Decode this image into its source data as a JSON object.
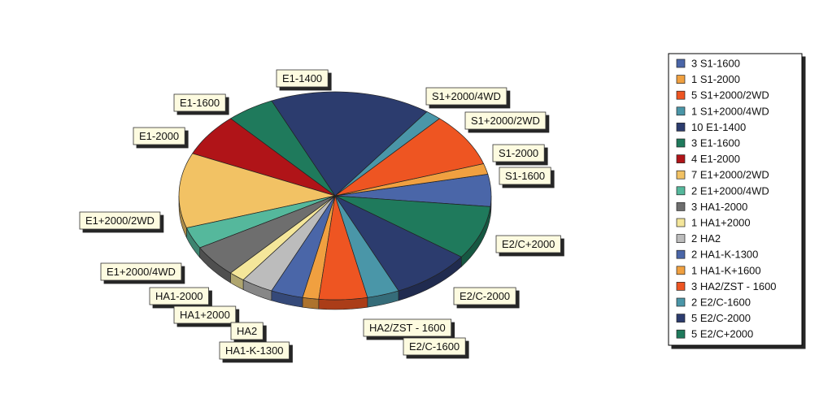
{
  "chart_data": {
    "type": "pie",
    "slices": [
      {
        "count": 3,
        "name": "S1-1600",
        "label": "S1-1600",
        "color": "#4a66a8"
      },
      {
        "count": 1,
        "name": "S1-2000",
        "label": "S1-2000",
        "color": "#f0a040"
      },
      {
        "count": 5,
        "name": "S1+2000/2WD",
        "label": "S1+2000/2WD",
        "color": "#ee5522"
      },
      {
        "count": 1,
        "name": "S1+2000/4WD",
        "label": "S1+2000/4WD",
        "color": "#4a96a8"
      },
      {
        "count": 10,
        "name": "E1-1400",
        "label": "E1-1400",
        "color": "#2c3c6e"
      },
      {
        "count": 3,
        "name": "E1-1600",
        "label": "E1-1600",
        "color": "#1f7a5c"
      },
      {
        "count": 4,
        "name": "E1-2000",
        "label": "E1-2000",
        "color": "#b01418"
      },
      {
        "count": 7,
        "name": "E1+2000/2WD",
        "label": "E1+2000/2WD",
        "color": "#f2c264"
      },
      {
        "count": 2,
        "name": "E1+2000/4WD",
        "label": "E1+2000/4WD",
        "color": "#55b89c"
      },
      {
        "count": 3,
        "name": "HA1-2000",
        "label": "HA1-2000",
        "color": "#6e6e6e"
      },
      {
        "count": 1,
        "name": "HA1+2000",
        "label": "HA1+2000",
        "color": "#f4e69a"
      },
      {
        "count": 2,
        "name": "HA2",
        "label": "HA2",
        "color": "#bcbcbc"
      },
      {
        "count": 2,
        "name": "HA1-K-1300",
        "label": "HA1-K-1300",
        "color": "#4a66a8"
      },
      {
        "count": 1,
        "name": "HA1-K+1600",
        "label": "",
        "color": "#f0a040"
      },
      {
        "count": 3,
        "name": "HA2/ZST - 1600",
        "label": "HA2/ZST - 1600",
        "color": "#ee5522"
      },
      {
        "count": 2,
        "name": "E2/C-1600",
        "label": "E2/C-1600",
        "color": "#4a96a8"
      },
      {
        "count": 5,
        "name": "E2/C-2000",
        "label": "E2/C-2000",
        "color": "#2c3c6e"
      },
      {
        "count": 5,
        "name": "E2/C+2000",
        "label": "E2/C+2000",
        "color": "#1f7a5c"
      }
    ],
    "legend": {
      "placement": "right",
      "entries": [
        "3 S1-1600",
        "1 S1-2000",
        "5 S1+2000/2WD",
        "1 S1+2000/4WD",
        "10 E1-1400",
        "3 E1-1600",
        "4 E1-2000",
        "7 E1+2000/2WD",
        "2 E1+2000/4WD",
        "3 HA1-2000",
        "1 HA1+2000",
        "2 HA2",
        "2 HA1-K-1300",
        "1 HA1-K+1600",
        "3 HA2/ZST - 1600",
        "2 E2/C-1600",
        "5 E2/C-2000",
        "5 E2/C+2000"
      ]
    }
  }
}
